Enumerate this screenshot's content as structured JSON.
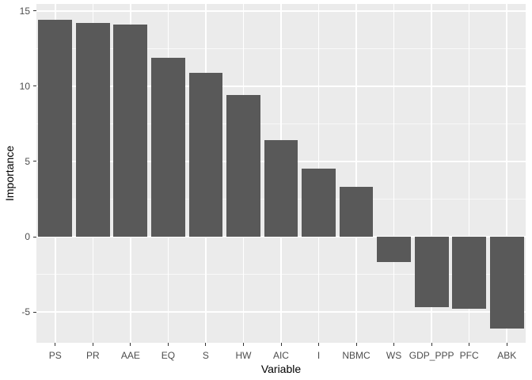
{
  "chart_data": {
    "type": "bar",
    "title": "",
    "xlabel": "Variable",
    "ylabel": "Importance",
    "categories": [
      "PS",
      "PR",
      "AAE",
      "EQ",
      "S",
      "HW",
      "AIC",
      "I",
      "NBMC",
      "WS",
      "GDP_PPP",
      "PFC",
      "ABK"
    ],
    "values": [
      14.4,
      14.2,
      14.1,
      11.9,
      10.9,
      9.4,
      6.4,
      4.5,
      3.3,
      -1.7,
      -4.7,
      -4.8,
      -6.1
    ],
    "yticks": [
      -5,
      0,
      5,
      10,
      15
    ],
    "minor_yticks": [
      -2.5,
      2.5,
      7.5,
      12.5
    ],
    "ylim": [
      -7.05,
      15.47
    ],
    "bar_width_fraction": 0.9,
    "grid": "major+minor, white on grey panel",
    "legend": "none",
    "colors": {
      "bar": "#595959",
      "panel_background": "#EBEBEB",
      "gridline": "#FFFFFF",
      "tick_label": "#4D4D4D",
      "axis_title": "#000000",
      "tick_mark": "#333333",
      "figure_background": "#FFFFFF"
    }
  }
}
